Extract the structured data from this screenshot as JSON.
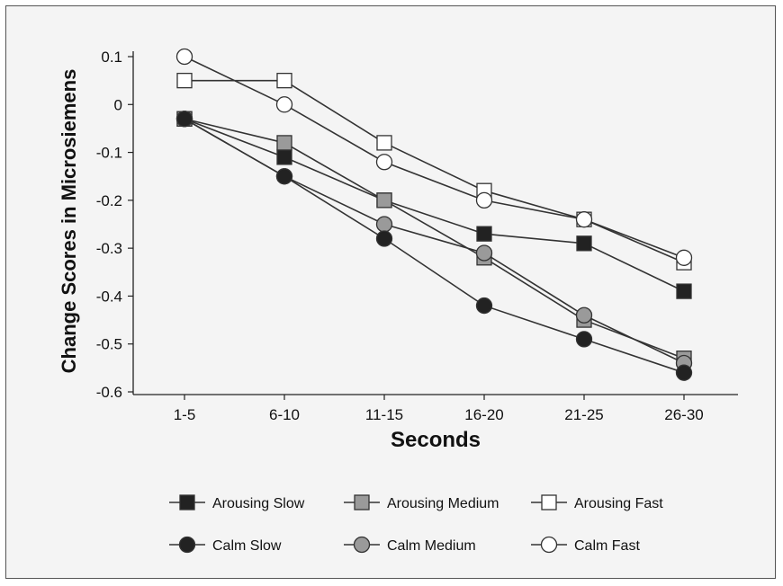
{
  "chart_data": {
    "type": "line",
    "title": "",
    "xlabel": "Seconds",
    "ylabel": "Change Scores in Microsiemens",
    "categories": [
      "1-5",
      "6-10",
      "11-15",
      "16-20",
      "21-25",
      "26-30"
    ],
    "ylim": [
      -0.6,
      0.1
    ],
    "yticks": [
      0.1,
      0,
      -0.1,
      -0.2,
      -0.3,
      -0.4,
      -0.5,
      -0.6
    ],
    "ytick_labels": [
      "0.1",
      "0",
      "-0.1",
      "-0.2",
      "-0.3",
      "-0.4",
      "-0.5",
      "-0.6"
    ],
    "grid": false,
    "legend_position": "bottom",
    "series": [
      {
        "name": "Arousing Slow",
        "marker": "square",
        "fill": "#222222",
        "values": [
          -0.03,
          -0.11,
          -0.2,
          -0.27,
          -0.29,
          -0.39
        ]
      },
      {
        "name": "Arousing Medium",
        "marker": "square",
        "fill": "#9a9a9a",
        "values": [
          -0.03,
          -0.08,
          -0.2,
          -0.32,
          -0.45,
          -0.53
        ]
      },
      {
        "name": "Arousing Fast",
        "marker": "square",
        "fill": "#ffffff",
        "values": [
          0.05,
          0.05,
          -0.08,
          -0.18,
          -0.24,
          -0.33
        ]
      },
      {
        "name": "Calm Slow",
        "marker": "circle",
        "fill": "#222222",
        "values": [
          -0.03,
          -0.15,
          -0.28,
          -0.42,
          -0.49,
          -0.56
        ]
      },
      {
        "name": "Calm Medium",
        "marker": "circle",
        "fill": "#9a9a9a",
        "values": [
          -0.03,
          -0.15,
          -0.25,
          -0.31,
          -0.44,
          -0.54
        ]
      },
      {
        "name": "Calm Fast",
        "marker": "circle",
        "fill": "#ffffff",
        "values": [
          0.1,
          0.0,
          -0.12,
          -0.2,
          -0.24,
          -0.32
        ]
      }
    ]
  }
}
